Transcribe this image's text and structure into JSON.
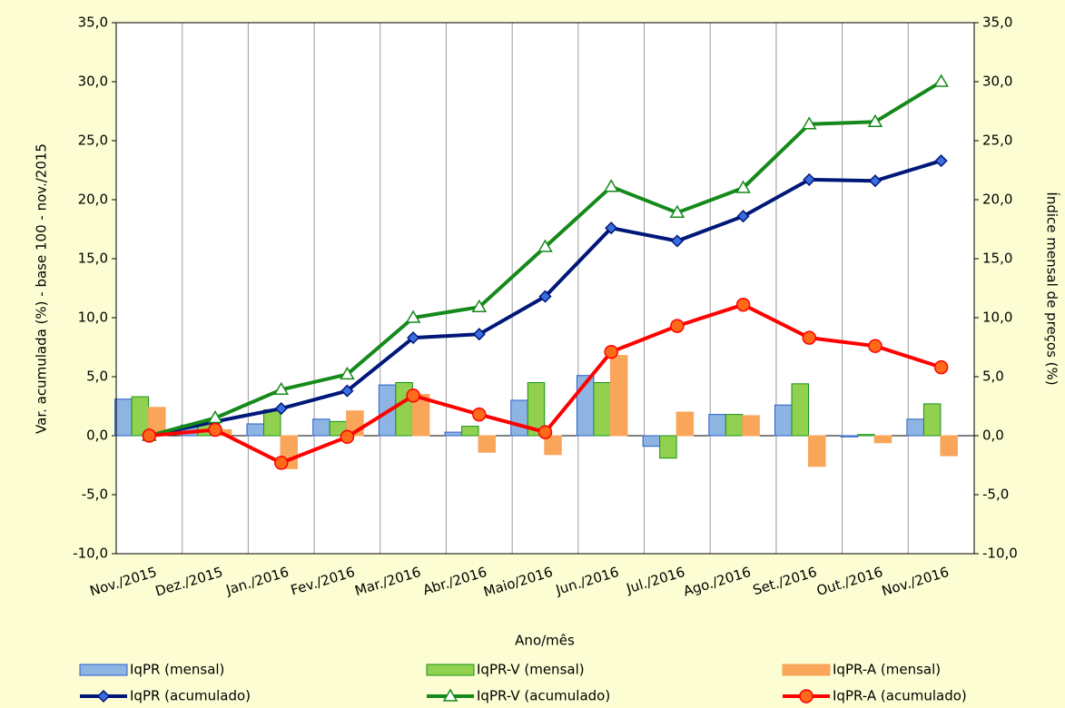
{
  "chart_data": {
    "type": "combo",
    "xlabel": "Ano/mês",
    "ylabel": "Var. acumulada (%) - base 100 - nov./2015",
    "y2label": "Índice mensal de preços (%)",
    "categories": [
      "Nov./2015",
      "Dez./2015",
      "Jan./2016",
      "Fev./2016",
      "Mar./2016",
      "Abr./2016",
      "Maio/2016",
      "Jun./2016",
      "Jul./2016",
      "Ago./2016",
      "Set./2016",
      "Out./2016",
      "Nov./2016"
    ],
    "ylim": [
      -10,
      35
    ],
    "yticks": [
      {
        "value": -10,
        "label": "-10,0"
      },
      {
        "value": -5,
        "label": "-5,0"
      },
      {
        "value": 0,
        "label": "0,0"
      },
      {
        "value": 5,
        "label": "5,0"
      },
      {
        "value": 10,
        "label": "10,0"
      },
      {
        "value": 15,
        "label": "15,0"
      },
      {
        "value": 20,
        "label": "20,0"
      },
      {
        "value": 25,
        "label": "25,0"
      },
      {
        "value": 30,
        "label": "30,0"
      },
      {
        "value": 35,
        "label": "35,0"
      }
    ],
    "y2lim": [
      -10,
      35
    ],
    "y2ticks": [
      {
        "value": -10,
        "label": "-10,0"
      },
      {
        "value": -5,
        "label": "-5,0"
      },
      {
        "value": 0,
        "label": "0,0"
      },
      {
        "value": 5,
        "label": "5,0"
      },
      {
        "value": 10,
        "label": "10,0"
      },
      {
        "value": 15,
        "label": "15,0"
      },
      {
        "value": 20,
        "label": "20,0"
      },
      {
        "value": 25,
        "label": "25,0"
      },
      {
        "value": 30,
        "label": "30,0"
      },
      {
        "value": 35,
        "label": "35,0"
      }
    ],
    "series": [
      {
        "name": "IqPR (mensal)",
        "type": "bar",
        "axis": "y2",
        "color": "#8db4e2",
        "values": [
          3.1,
          0.9,
          1.0,
          1.4,
          4.3,
          0.3,
          3.0,
          5.1,
          -0.9,
          1.8,
          2.6,
          -0.1,
          1.4
        ]
      },
      {
        "name": "IqPR-V (mensal)",
        "type": "bar",
        "axis": "y2",
        "color": "#92d050",
        "values": [
          3.3,
          1.0,
          2.2,
          1.2,
          4.5,
          0.8,
          4.5,
          4.5,
          -1.9,
          1.8,
          4.4,
          0.1,
          2.7
        ]
      },
      {
        "name": "IqPR-A (mensal)",
        "type": "bar",
        "axis": "y2",
        "color": "#f9a55a",
        "values": [
          2.4,
          0.5,
          -2.8,
          2.1,
          3.5,
          -1.4,
          -1.6,
          6.8,
          2.0,
          1.7,
          -2.6,
          -0.6,
          -1.7
        ]
      },
      {
        "name": "IqPR (acumulado)",
        "type": "line",
        "marker": "diamond",
        "color": "#00177a",
        "values": [
          0,
          1.2,
          2.3,
          3.8,
          8.3,
          8.6,
          11.8,
          17.6,
          16.5,
          18.6,
          21.7,
          21.6,
          23.3
        ]
      },
      {
        "name": "IqPR-V  (acumulado)",
        "type": "line",
        "marker": "triangle",
        "color": "#15891a",
        "values": [
          0,
          1.5,
          3.9,
          5.2,
          10.0,
          10.9,
          16.0,
          21.1,
          18.9,
          21.0,
          26.4,
          26.6,
          30.0
        ]
      },
      {
        "name": "IqPR-A  (acumulado)",
        "type": "line",
        "marker": "circle",
        "color": "#ff0000",
        "values": [
          0,
          0.5,
          -2.3,
          -0.1,
          3.4,
          1.8,
          0.3,
          7.1,
          9.3,
          11.1,
          8.3,
          7.6,
          5.8
        ]
      }
    ]
  }
}
